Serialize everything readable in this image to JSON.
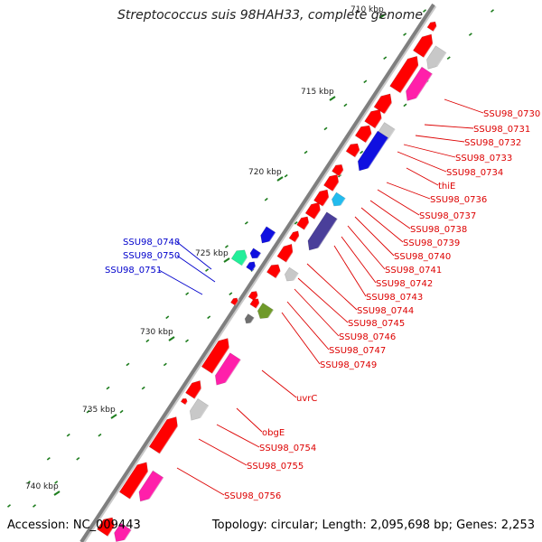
{
  "title": "Streptococcus suis 98HAH33, complete genome",
  "footer": {
    "accession": "Accession: NC_009443",
    "topology": "Topology: circular; Length: 2,095,698 bp; Genes: 2,253"
  },
  "colors": {
    "backbone": "#7f7f7f",
    "red": "#ff0000",
    "pink": "#ff1faa",
    "grey": "#c8c8c8",
    "blue": "#1010e0",
    "cyan": "#22bbee",
    "navy": "#4a3f9a",
    "green": "#6f9a2a",
    "mint": "#22ee99",
    "darkgrey": "#6f6f6f",
    "tick": "#1e7d1e",
    "label_red": "#dd0000",
    "label_blue": "#0000cc"
  },
  "kbp_labels": [
    "710 kbp",
    "715 kbp",
    "720 kbp",
    "725 kbp",
    "730 kbp",
    "735 kbp",
    "740 kbp"
  ],
  "gene_labels_right": [
    "SSU98_0730",
    "SSU98_0731",
    "SSU98_0732",
    "SSU98_0733",
    "SSU98_0734",
    "thiE",
    "SSU98_0736",
    "SSU98_0737",
    "SSU98_0738",
    "SSU98_0739",
    "SSU98_0740",
    "SSU98_0741",
    "SSU98_0742",
    "SSU98_0743",
    "SSU98_0744",
    "SSU98_0745",
    "SSU98_0746",
    "SSU98_0747",
    "SSU98_0749",
    "uvrC",
    "obgE",
    "SSU98_0754",
    "SSU98_0755",
    "SSU98_0756"
  ],
  "gene_labels_left": [
    "SSU98_0748",
    "SSU98_0750",
    "SSU98_0751"
  ]
}
